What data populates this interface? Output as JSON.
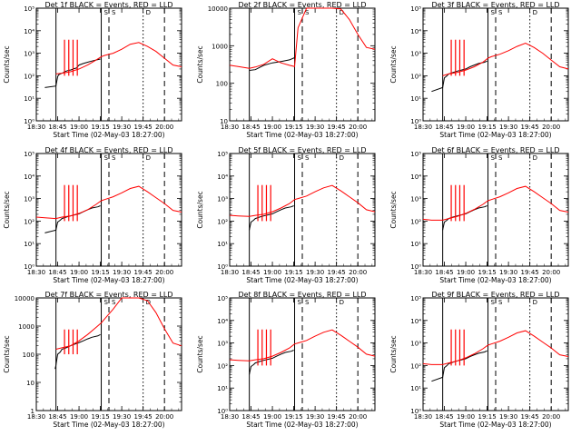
{
  "colors": {
    "events": "#000000",
    "lld": "#ff0000",
    "background": "#ffffff"
  },
  "chart_data": [
    {
      "type": "line",
      "title": "Det 1f BLACK = Events, RED = LLD",
      "xlabel": "Start Time (02-May-03 18:27:00)",
      "ylabel": "Counts/sec",
      "xticks": [
        "18:30",
        "18:45",
        "19:00",
        "19:15",
        "19:30",
        "19:45",
        "20:00"
      ],
      "ylim": [
        1,
        100000
      ],
      "yscale": "log",
      "yticks": [
        "10⁰",
        "10¹",
        "10²",
        "10³",
        "10⁴",
        "10⁵"
      ],
      "markers": [
        "S",
        "S",
        "D"
      ],
      "series": [
        {
          "name": "Events",
          "color": "#000000",
          "x": [
            18.6,
            18.73,
            18.75,
            18.76,
            18.78,
            18.8,
            18.82,
            18.83,
            18.85,
            18.87,
            18.88,
            18.9,
            18.92,
            18.93,
            18.95,
            18.97,
            19.0,
            19.05,
            19.1,
            19.15,
            19.22,
            19.25
          ],
          "y": [
            30,
            35,
            90,
            110,
            120,
            130,
            140,
            150,
            160,
            170,
            175,
            180,
            190,
            200,
            210,
            220,
            300,
            350,
            400,
            450,
            520,
            550
          ]
        },
        {
          "name": "LLD",
          "color": "#ff0000",
          "x": [
            18.73,
            18.8,
            18.9,
            19.0,
            19.1,
            19.2,
            19.26,
            19.3,
            19.4,
            19.5,
            19.6,
            19.7,
            19.8,
            19.9,
            20.0,
            20.1,
            20.2
          ],
          "y": [
            120,
            130,
            150,
            200,
            300,
            500,
            700,
            800,
            1000,
            1500,
            2500,
            3000,
            2000,
            1200,
            600,
            300,
            250
          ]
        }
      ]
    },
    {
      "type": "line",
      "title": "Det 2f BLACK = Events, RED = LLD",
      "xlabel": "Start Time (02-May-03 18:27:00)",
      "ylabel": "Counts/sec",
      "xticks": [
        "18:30",
        "18:45",
        "19:00",
        "19:15",
        "19:30",
        "19:45",
        "20:00"
      ],
      "ylim": [
        10,
        10000
      ],
      "yscale": "log",
      "yticks": [
        "10",
        "100",
        "1000",
        "10000"
      ],
      "markers": [
        "S",
        "S",
        "D"
      ],
      "series": [
        {
          "name": "Events",
          "color": "#000000",
          "x": [
            18.73,
            18.8,
            18.9,
            19.0,
            19.1,
            19.2,
            19.26
          ],
          "y": [
            220,
            230,
            300,
            350,
            380,
            420,
            480
          ]
        },
        {
          "name": "LLD",
          "color": "#ff0000",
          "x": [
            18.5,
            18.6,
            18.73,
            18.8,
            18.9,
            19.0,
            19.1,
            19.2,
            19.26,
            19.3,
            19.4,
            19.5,
            19.6,
            19.7,
            19.8,
            19.9,
            20.0,
            20.1,
            20.2
          ],
          "y": [
            300,
            280,
            250,
            270,
            320,
            450,
            350,
            300,
            280,
            3000,
            10000,
            10000,
            10000,
            10000,
            9500,
            5000,
            2000,
            900,
            800
          ]
        }
      ]
    },
    {
      "type": "line",
      "title": "Det 3f BLACK = Events, RED = LLD",
      "xlabel": "Start Time (02-May-03 18:27:00)",
      "ylabel": "Counts/sec",
      "xticks": [
        "18:30",
        "18:45",
        "19:00",
        "19:15",
        "19:30",
        "19:45",
        "20:00"
      ],
      "ylim": [
        1,
        100000
      ],
      "yscale": "log",
      "yticks": [
        "10⁰",
        "10¹",
        "10²",
        "10³",
        "10⁴",
        "10⁵"
      ],
      "markers": [
        "S",
        "S",
        "D"
      ],
      "series": [
        {
          "name": "Events",
          "color": "#000000",
          "x": [
            18.6,
            18.73,
            18.75,
            18.78,
            18.8,
            18.85,
            18.9,
            18.95,
            19.0,
            19.05,
            19.1,
            19.15,
            19.22,
            19.25
          ],
          "y": [
            20,
            30,
            80,
            100,
            120,
            140,
            160,
            180,
            200,
            250,
            300,
            350,
            400,
            450
          ]
        },
        {
          "name": "LLD",
          "color": "#ff0000",
          "x": [
            18.73,
            18.8,
            18.9,
            19.0,
            19.1,
            19.2,
            19.26,
            19.3,
            19.4,
            19.5,
            19.6,
            19.7,
            19.8,
            19.9,
            20.0,
            20.1,
            20.2
          ],
          "y": [
            100,
            120,
            140,
            180,
            250,
            400,
            600,
            700,
            900,
            1300,
            2000,
            2800,
            1800,
            1000,
            500,
            250,
            200
          ]
        }
      ]
    },
    {
      "type": "line",
      "title": "Det 4f BLACK = Events, RED = LLD",
      "xlabel": "Start Time (02-May-03 18:27:00)",
      "ylabel": "Counts/sec",
      "xticks": [
        "18:30",
        "18:45",
        "19:00",
        "19:15",
        "19:30",
        "19:45",
        "20:00"
      ],
      "ylim": [
        1,
        100000
      ],
      "yscale": "log",
      "yticks": [
        "10⁰",
        "10¹",
        "10²",
        "10³",
        "10⁴",
        "10⁵"
      ],
      "markers": [
        "S",
        "S",
        "D"
      ],
      "series": [
        {
          "name": "Events",
          "color": "#000000",
          "x": [
            18.6,
            18.73,
            18.75,
            18.78,
            18.8,
            18.85,
            18.9,
            18.95,
            19.0,
            19.05,
            19.1,
            19.15,
            19.22,
            19.25
          ],
          "y": [
            30,
            40,
            90,
            110,
            130,
            150,
            170,
            190,
            210,
            260,
            320,
            380,
            430,
            480
          ]
        },
        {
          "name": "LLD",
          "color": "#ff0000",
          "x": [
            18.5,
            18.6,
            18.73,
            18.8,
            18.9,
            19.0,
            19.1,
            19.2,
            19.26,
            19.3,
            19.4,
            19.5,
            19.6,
            19.7,
            19.8,
            19.9,
            20.0,
            20.1,
            20.2
          ],
          "y": [
            150,
            140,
            130,
            150,
            170,
            220,
            320,
            550,
            800,
            900,
            1200,
            1800,
            2800,
            3500,
            2000,
            1100,
            600,
            300,
            250
          ]
        }
      ]
    },
    {
      "type": "line",
      "title": "Det 5f BLACK = Events, RED = LLD",
      "xlabel": "Start Time (02-May-03 18:27:00)",
      "ylabel": "Counts/sec",
      "xticks": [
        "18:30",
        "18:45",
        "19:00",
        "19:15",
        "19:30",
        "19:45",
        "20:00"
      ],
      "ylim": [
        1,
        100000
      ],
      "yscale": "log",
      "yticks": [
        "10⁰",
        "10¹",
        "10²",
        "10³",
        "10⁴",
        "10⁵"
      ],
      "markers": [
        "S",
        "S",
        "D"
      ],
      "series": [
        {
          "name": "Events",
          "color": "#000000",
          "x": [
            18.73,
            18.75,
            18.78,
            18.8,
            18.85,
            18.9,
            18.95,
            19.0,
            19.05,
            19.1,
            19.15,
            19.22,
            19.25
          ],
          "y": [
            40,
            90,
            110,
            130,
            150,
            170,
            190,
            210,
            260,
            320,
            380,
            430,
            480
          ]
        },
        {
          "name": "LLD",
          "color": "#ff0000",
          "x": [
            18.5,
            18.6,
            18.73,
            18.8,
            18.9,
            19.0,
            19.1,
            19.2,
            19.26,
            19.3,
            19.4,
            19.5,
            19.6,
            19.7,
            19.8,
            19.9,
            20.0,
            20.1,
            20.2
          ],
          "y": [
            180,
            170,
            160,
            180,
            200,
            260,
            380,
            600,
            900,
            1000,
            1300,
            2000,
            3000,
            3800,
            2200,
            1200,
            650,
            320,
            260
          ]
        }
      ]
    },
    {
      "type": "line",
      "title": "Det 6f BLACK = Events, RED = LLD",
      "xlabel": "Start Time (02-May-03 18:27:00)",
      "ylabel": "Counts/sec",
      "xticks": [
        "18:30",
        "18:45",
        "19:00",
        "19:15",
        "19:30",
        "19:45",
        "20:00"
      ],
      "ylim": [
        1,
        100000
      ],
      "yscale": "log",
      "yticks": [
        "10⁰",
        "10¹",
        "10²",
        "10³",
        "10⁴",
        "10⁵"
      ],
      "markers": [
        "S",
        "S",
        "D"
      ],
      "series": [
        {
          "name": "Events",
          "color": "#000000",
          "x": [
            18.73,
            18.75,
            18.78,
            18.8,
            18.85,
            18.9,
            18.95,
            19.0,
            19.05,
            19.1,
            19.15,
            19.22,
            19.25
          ],
          "y": [
            40,
            90,
            110,
            130,
            150,
            170,
            190,
            210,
            260,
            320,
            380,
            430,
            480
          ]
        },
        {
          "name": "LLD",
          "color": "#ff0000",
          "x": [
            18.5,
            18.6,
            18.73,
            18.8,
            18.9,
            19.0,
            19.1,
            19.2,
            19.26,
            19.3,
            19.4,
            19.5,
            19.6,
            19.7,
            19.8,
            19.9,
            20.0,
            20.1,
            20.2
          ],
          "y": [
            120,
            110,
            110,
            130,
            160,
            220,
            330,
            550,
            800,
            900,
            1200,
            1800,
            2800,
            3500,
            2000,
            1100,
            600,
            300,
            250
          ]
        }
      ]
    },
    {
      "type": "line",
      "title": "Det 7f BLACK = Events, RED = LLD",
      "xlabel": "Start Time (02-May-03 18:27:00)",
      "ylabel": "Counts/sec",
      "xticks": [
        "18:30",
        "18:45",
        "19:00",
        "19:15",
        "19:30",
        "19:45",
        "20:00"
      ],
      "ylim": [
        1,
        10000
      ],
      "yscale": "log",
      "yticks": [
        "1",
        "10",
        "100",
        "1000",
        "10000"
      ],
      "markers": [
        "S",
        "S",
        "D"
      ],
      "series": [
        {
          "name": "Events",
          "color": "#000000",
          "x": [
            18.72,
            18.73,
            18.75,
            18.78,
            18.8,
            18.85,
            18.9,
            18.95,
            19.0,
            19.05,
            19.1,
            19.15,
            19.22,
            19.25
          ],
          "y": [
            30,
            40,
            100,
            120,
            150,
            170,
            200,
            230,
            260,
            300,
            350,
            400,
            450,
            500
          ]
        },
        {
          "name": "LLD",
          "color": "#ff0000",
          "x": [
            18.73,
            18.8,
            18.9,
            19.0,
            19.1,
            19.2,
            19.26,
            19.3,
            19.4,
            19.5,
            19.6,
            19.7,
            19.8,
            19.9,
            20.0,
            20.1,
            20.2
          ],
          "y": [
            150,
            170,
            200,
            300,
            500,
            900,
            1300,
            1800,
            4000,
            10000,
            10000,
            10000,
            8000,
            3000,
            800,
            250,
            200
          ]
        }
      ]
    },
    {
      "type": "line",
      "title": "Det 8f BLACK = Events, RED = LLD",
      "xlabel": "Start Time (02-May-03 18:27:00)",
      "ylabel": "Counts/sec",
      "xticks": [
        "18:30",
        "18:45",
        "19:00",
        "19:15",
        "19:30",
        "19:45",
        "20:00"
      ],
      "ylim": [
        1,
        100000
      ],
      "yscale": "log",
      "yticks": [
        "10⁰",
        "10¹",
        "10²",
        "10³",
        "10⁴",
        "10⁵"
      ],
      "markers": [
        "S",
        "S",
        "D"
      ],
      "series": [
        {
          "name": "Events",
          "color": "#000000",
          "x": [
            18.73,
            18.75,
            18.78,
            18.8,
            18.85,
            18.9,
            18.95,
            19.0,
            19.05,
            19.1,
            19.15,
            19.22,
            19.25
          ],
          "y": [
            40,
            90,
            110,
            130,
            150,
            170,
            190,
            210,
            260,
            320,
            380,
            430,
            480
          ]
        },
        {
          "name": "LLD",
          "color": "#ff0000",
          "x": [
            18.5,
            18.6,
            18.73,
            18.8,
            18.9,
            19.0,
            19.1,
            19.2,
            19.26,
            19.3,
            19.4,
            19.5,
            19.6,
            19.7,
            19.8,
            19.9,
            20.0,
            20.1,
            20.2
          ],
          "y": [
            180,
            170,
            160,
            180,
            200,
            260,
            380,
            600,
            900,
            1000,
            1300,
            2000,
            3000,
            3800,
            2200,
            1200,
            650,
            320,
            260
          ]
        }
      ]
    },
    {
      "type": "line",
      "title": "Det 9f BLACK = Events, RED = LLD",
      "xlabel": "Start Time (02-May-03 18:27:00)",
      "ylabel": "Counts/sec",
      "xticks": [
        "18:30",
        "18:45",
        "19:00",
        "19:15",
        "19:30",
        "19:45",
        "20:00"
      ],
      "ylim": [
        1,
        100000
      ],
      "yscale": "log",
      "yticks": [
        "10⁰",
        "10¹",
        "10²",
        "10³",
        "10⁴",
        "10⁵"
      ],
      "markers": [
        "S",
        "S",
        "D"
      ],
      "series": [
        {
          "name": "Events",
          "color": "#000000",
          "x": [
            18.6,
            18.73,
            18.75,
            18.78,
            18.8,
            18.85,
            18.9,
            18.95,
            19.0,
            19.05,
            19.1,
            19.15,
            19.22,
            19.25
          ],
          "y": [
            20,
            30,
            80,
            100,
            120,
            140,
            160,
            180,
            200,
            250,
            300,
            350,
            400,
            450
          ]
        },
        {
          "name": "LLD",
          "color": "#ff0000",
          "x": [
            18.5,
            18.6,
            18.73,
            18.8,
            18.9,
            19.0,
            19.1,
            19.2,
            19.26,
            19.3,
            19.4,
            19.5,
            19.6,
            19.7,
            19.8,
            19.9,
            20.0,
            20.1,
            20.2
          ],
          "y": [
            120,
            110,
            110,
            130,
            160,
            220,
            330,
            550,
            800,
            900,
            1200,
            1800,
            2800,
            3500,
            2000,
            1100,
            600,
            300,
            250
          ]
        }
      ]
    }
  ]
}
